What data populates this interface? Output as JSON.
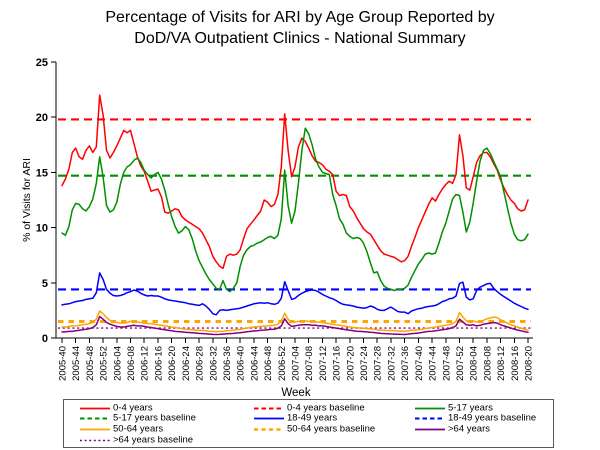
{
  "title": {
    "line1": "Percentage of Visits for ARI by Age Group Reported by",
    "line2": "DoD/VA Outpatient Clinics - National Summary"
  },
  "colors": {
    "red": "#ff0000",
    "green": "#008f00",
    "blue": "#0000ff",
    "orange": "#ffa500",
    "purple": "#800080",
    "axis": "#000000",
    "legend_border": "#595959"
  },
  "chart_data": {
    "type": "line",
    "title": "Percentage of Visits for ARI by Age Group Reported by DoD/VA Outpatient Clinics - National Summary",
    "xlabel": "Week",
    "ylabel": "% of Visits for ARI",
    "ylim": [
      0,
      25
    ],
    "y_ticks": [
      0,
      5,
      10,
      15,
      20,
      25
    ],
    "grid": false,
    "legend_position": "bottom",
    "x_weeks_total": 137,
    "x_tick_every_weeks": 4,
    "x_tick_labels": [
      "2005-40",
      "2005-44",
      "2005-48",
      "2005-52",
      "2006-04",
      "2006-08",
      "2006-12",
      "2006-16",
      "2006-20",
      "2006-24",
      "2006-28",
      "2006-32",
      "2006-36",
      "2006-40",
      "2006-44",
      "2006-48",
      "2006-52",
      "2007-04",
      "2007-08",
      "2007-12",
      "2007-16",
      "2007-20",
      "2007-24",
      "2007-28",
      "2007-32",
      "2007-36",
      "2007-40",
      "2007-44",
      "2007-48",
      "2007-52",
      "2008-04",
      "2008-08",
      "2008-12",
      "2008-16",
      "2008-20"
    ],
    "series": [
      {
        "name": "0-4 years",
        "color": "#ff0000",
        "style": "solid",
        "values": [
          13.8,
          14.4,
          15.3,
          16.8,
          17.2,
          16.4,
          16.2,
          17.0,
          17.4,
          16.8,
          17.3,
          22.0,
          20.2,
          17.0,
          16.3,
          16.8,
          17.4,
          18.1,
          18.8,
          18.6,
          18.8,
          17.6,
          16.4,
          15.6,
          15.1,
          14.2,
          13.3,
          13.4,
          13.5,
          12.8,
          11.4,
          11.3,
          11.5,
          11.7,
          11.6,
          11.0,
          10.7,
          10.5,
          10.3,
          10.1,
          9.9,
          9.5,
          8.9,
          8.3,
          7.4,
          6.9,
          6.5,
          6.3,
          7.4,
          7.6,
          7.5,
          7.6,
          8.0,
          9.0,
          9.9,
          10.3,
          10.7,
          11.1,
          11.5,
          12.5,
          12.3,
          11.9,
          12.1,
          13.0,
          15.5,
          20.3,
          17.0,
          14.6,
          15.5,
          17.3,
          18.1,
          17.8,
          17.2,
          16.5,
          16.0,
          15.9,
          15.7,
          15.3,
          15.1,
          14.8,
          13.3,
          12.9,
          13.0,
          12.9,
          11.9,
          11.5,
          10.9,
          10.4,
          9.9,
          9.6,
          9.4,
          8.9,
          8.4,
          7.9,
          7.6,
          7.5,
          7.4,
          7.3,
          7.1,
          6.9,
          7.0,
          7.4,
          8.3,
          9.1,
          10.0,
          10.7,
          11.4,
          12.1,
          12.7,
          12.4,
          13.0,
          13.5,
          13.9,
          14.2,
          14.0,
          14.8,
          18.4,
          16.5,
          13.6,
          13.4,
          14.6,
          15.9,
          16.5,
          16.8,
          16.8,
          16.4,
          15.8,
          15.2,
          14.3,
          13.6,
          13.0,
          12.5,
          12.2,
          11.7,
          11.5,
          11.6,
          12.5
        ]
      },
      {
        "name": "5-17 years",
        "color": "#008f00",
        "style": "solid",
        "values": [
          9.5,
          9.3,
          10.1,
          11.6,
          12.2,
          12.1,
          11.7,
          11.5,
          11.9,
          12.6,
          14.0,
          16.4,
          14.6,
          12.0,
          11.4,
          11.6,
          12.3,
          13.9,
          15.0,
          15.5,
          15.7,
          16.1,
          16.3,
          15.9,
          15.2,
          14.8,
          14.5,
          14.8,
          15.0,
          14.4,
          13.4,
          12.1,
          11.0,
          10.1,
          9.5,
          9.7,
          10.1,
          9.8,
          9.0,
          7.9,
          7.0,
          6.4,
          5.8,
          5.3,
          4.9,
          4.5,
          4.4,
          5.2,
          4.4,
          4.2,
          4.5,
          5.0,
          6.5,
          7.5,
          8.0,
          8.3,
          8.4,
          8.6,
          8.7,
          8.9,
          9.1,
          9.2,
          9.0,
          9.3,
          10.8,
          15.2,
          12.0,
          10.4,
          11.5,
          14.0,
          17.0,
          19.0,
          18.5,
          17.5,
          16.2,
          15.5,
          15.0,
          14.9,
          14.8,
          13.0,
          12.0,
          10.8,
          10.3,
          9.5,
          9.2,
          9.0,
          9.1,
          9.0,
          8.6,
          7.8,
          6.8,
          5.9,
          6.0,
          5.2,
          4.7,
          4.5,
          4.4,
          4.3,
          4.4,
          4.4,
          4.5,
          4.8,
          5.5,
          6.1,
          6.7,
          7.1,
          7.6,
          7.7,
          7.6,
          7.7,
          8.6,
          9.6,
          10.4,
          11.5,
          12.6,
          13.0,
          12.9,
          11.4,
          9.6,
          10.5,
          12.2,
          14.2,
          16.0,
          17.0,
          17.2,
          16.7,
          16.0,
          15.3,
          14.6,
          13.2,
          11.8,
          10.4,
          9.4,
          8.9,
          8.8,
          8.9,
          9.4
        ]
      },
      {
        "name": "18-49 years",
        "color": "#0000ff",
        "style": "solid",
        "values": [
          3.0,
          3.05,
          3.1,
          3.2,
          3.3,
          3.35,
          3.4,
          3.5,
          3.55,
          3.6,
          4.1,
          5.9,
          5.3,
          4.4,
          4.05,
          3.85,
          3.8,
          3.85,
          3.95,
          4.1,
          4.2,
          4.35,
          4.25,
          4.05,
          3.9,
          3.8,
          3.85,
          3.8,
          3.8,
          3.7,
          3.55,
          3.45,
          3.4,
          3.35,
          3.3,
          3.25,
          3.2,
          3.1,
          3.05,
          3.0,
          2.95,
          3.1,
          2.9,
          2.6,
          2.2,
          2.1,
          2.5,
          2.55,
          2.5,
          2.55,
          2.6,
          2.65,
          2.7,
          2.8,
          2.9,
          3.0,
          3.1,
          3.15,
          3.2,
          3.15,
          3.2,
          3.1,
          3.05,
          3.15,
          3.6,
          5.1,
          4.3,
          3.5,
          3.6,
          3.85,
          4.05,
          4.2,
          4.3,
          4.35,
          4.3,
          4.15,
          3.95,
          3.8,
          3.65,
          3.55,
          3.4,
          3.2,
          3.05,
          3.0,
          2.95,
          2.9,
          2.8,
          2.75,
          2.7,
          2.75,
          2.9,
          2.8,
          2.6,
          2.5,
          2.5,
          2.65,
          2.8,
          2.6,
          2.4,
          2.35,
          2.35,
          2.2,
          2.45,
          2.55,
          2.65,
          2.7,
          2.8,
          2.85,
          2.9,
          2.95,
          3.1,
          3.3,
          3.4,
          3.55,
          3.6,
          3.8,
          4.95,
          5.05,
          3.7,
          3.45,
          3.55,
          4.3,
          4.6,
          4.75,
          4.9,
          4.95,
          4.5,
          4.2,
          3.95,
          3.75,
          3.55,
          3.35,
          3.15,
          3.0,
          2.85,
          2.7,
          2.6
        ]
      },
      {
        "name": "50-64 years",
        "color": "#ffa500",
        "style": "solid",
        "values": [
          1.0,
          1.0,
          1.05,
          1.1,
          1.1,
          1.15,
          1.2,
          1.25,
          1.3,
          1.4,
          1.7,
          2.45,
          2.2,
          1.85,
          1.6,
          1.5,
          1.4,
          1.35,
          1.35,
          1.4,
          1.5,
          1.5,
          1.45,
          1.4,
          1.35,
          1.3,
          1.3,
          1.25,
          1.2,
          1.15,
          1.1,
          1.05,
          1.0,
          0.95,
          0.9,
          0.85,
          0.8,
          0.78,
          0.75,
          0.72,
          0.7,
          0.68,
          0.65,
          0.62,
          0.6,
          0.58,
          0.6,
          0.62,
          0.65,
          0.68,
          0.72,
          0.76,
          0.8,
          0.85,
          0.9,
          0.95,
          1.0,
          1.02,
          1.05,
          1.08,
          1.1,
          1.12,
          1.15,
          1.25,
          1.55,
          2.25,
          1.7,
          1.4,
          1.45,
          1.5,
          1.55,
          1.55,
          1.5,
          1.5,
          1.45,
          1.45,
          1.4,
          1.35,
          1.3,
          1.25,
          1.2,
          1.15,
          1.1,
          1.05,
          1.0,
          0.95,
          0.92,
          0.9,
          0.88,
          0.85,
          0.82,
          0.8,
          0.75,
          0.72,
          0.7,
          0.68,
          0.68,
          0.65,
          0.63,
          0.62,
          0.62,
          0.65,
          0.7,
          0.72,
          0.75,
          0.8,
          0.85,
          0.9,
          0.95,
          1.0,
          1.05,
          1.1,
          1.15,
          1.2,
          1.3,
          1.5,
          2.3,
          1.9,
          1.55,
          1.5,
          1.55,
          1.45,
          1.5,
          1.6,
          1.75,
          1.8,
          1.9,
          1.85,
          1.65,
          1.5,
          1.35,
          1.2,
          1.1,
          1.0,
          0.9,
          0.8,
          0.7
        ]
      },
      {
        "name": ">64 years",
        "color": "#800080",
        "style": "solid",
        "values": [
          0.55,
          0.55,
          0.6,
          0.6,
          0.65,
          0.7,
          0.75,
          0.8,
          0.85,
          0.95,
          1.2,
          1.95,
          1.7,
          1.4,
          1.25,
          1.15,
          1.05,
          1.0,
          1.0,
          1.05,
          1.1,
          1.15,
          1.1,
          1.1,
          1.05,
          1.0,
          0.95,
          0.9,
          0.85,
          0.8,
          0.75,
          0.7,
          0.65,
          0.6,
          0.58,
          0.55,
          0.52,
          0.5,
          0.48,
          0.45,
          0.42,
          0.4,
          0.38,
          0.35,
          0.33,
          0.32,
          0.33,
          0.35,
          0.38,
          0.4,
          0.42,
          0.45,
          0.48,
          0.52,
          0.56,
          0.6,
          0.63,
          0.66,
          0.7,
          0.72,
          0.75,
          0.78,
          0.8,
          0.9,
          1.1,
          1.75,
          1.3,
          1.05,
          1.1,
          1.15,
          1.2,
          1.2,
          1.2,
          1.15,
          1.15,
          1.1,
          1.1,
          1.05,
          1.0,
          0.95,
          0.9,
          0.85,
          0.8,
          0.75,
          0.7,
          0.65,
          0.62,
          0.6,
          0.58,
          0.55,
          0.52,
          0.5,
          0.45,
          0.42,
          0.4,
          0.38,
          0.36,
          0.35,
          0.34,
          0.33,
          0.32,
          0.35,
          0.4,
          0.42,
          0.45,
          0.5,
          0.55,
          0.6,
          0.62,
          0.65,
          0.7,
          0.75,
          0.8,
          0.85,
          0.95,
          1.1,
          1.7,
          1.45,
          1.2,
          1.15,
          1.2,
          1.1,
          1.15,
          1.25,
          1.3,
          1.35,
          1.4,
          1.35,
          1.2,
          1.1,
          1.0,
          0.9,
          0.8,
          0.72,
          0.65,
          0.58,
          0.52
        ]
      }
    ],
    "baselines": [
      {
        "name": "0-4 years baseline",
        "value": 19.8,
        "color": "#ff0000",
        "style": "dashed"
      },
      {
        "name": "5-17 years baseline",
        "value": 14.7,
        "color": "#008f00",
        "style": "dashed"
      },
      {
        "name": "18-49 years baseline",
        "value": 4.4,
        "color": "#0000ff",
        "style": "dashed"
      },
      {
        "name": "50-64 years baseline",
        "value": 1.5,
        "color": "#ffa500",
        "style": "dashed-thick"
      },
      {
        "name": ">64 years baseline",
        "value": 0.9,
        "color": "#800080",
        "style": "dotted"
      }
    ]
  },
  "legend": {
    "items": [
      {
        "label": "0-4 years",
        "color": "#ff0000",
        "style": "solid"
      },
      {
        "label": "0-4 years baseline",
        "color": "#ff0000",
        "style": "dashed"
      },
      {
        "label": "5-17 years",
        "color": "#008f00",
        "style": "solid"
      },
      {
        "label": "5-17 years baseline",
        "color": "#008f00",
        "style": "dashed"
      },
      {
        "label": "18-49 years",
        "color": "#0000ff",
        "style": "solid"
      },
      {
        "label": "18-49 years baseline",
        "color": "#0000ff",
        "style": "dashed"
      },
      {
        "label": "50-64 years",
        "color": "#ffa500",
        "style": "solid"
      },
      {
        "label": "50-64 years baseline",
        "color": "#ffa500",
        "style": "dashed-thick"
      },
      {
        "label": ">64 years",
        "color": "#800080",
        "style": "solid"
      },
      {
        "label": ">64 years baseline",
        "color": "#800080",
        "style": "dotted"
      }
    ]
  }
}
